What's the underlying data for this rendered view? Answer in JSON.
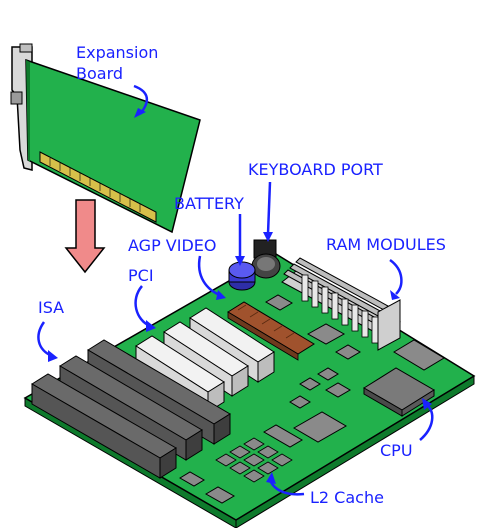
{
  "labels": {
    "expansion_board_line1": "Expansion",
    "expansion_board_line2": "Board",
    "keyboard_port": "KEYBOARD PORT",
    "battery": "BATTERY",
    "agp_video": "AGP VIDEO",
    "ram_modules": "RAM MODULES",
    "pci": "PCI",
    "isa": "ISA",
    "cpu": "CPU",
    "l2_cache": "L2 Cache"
  },
  "colors": {
    "label_text": "#1a22ff",
    "board_green": "#22b14c",
    "board_edge": "#0e7a2c",
    "arrow_fill": "#f08a8a",
    "slot_dark": "#555555",
    "slot_white": "#f2f2f2",
    "agp_brown": "#a0522d",
    "chip_gray": "#8a8a8a"
  },
  "icons": [
    "down-arrow-icon"
  ]
}
